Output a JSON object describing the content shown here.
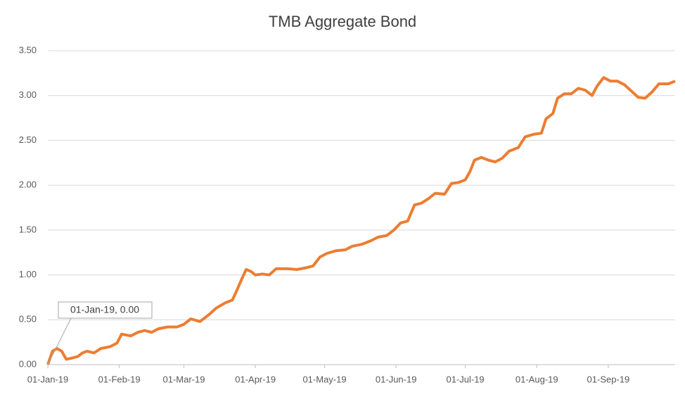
{
  "chart_data": {
    "type": "line",
    "title": "TMB Aggregate Bond",
    "x": [
      "2019-01-01",
      "2019-01-03",
      "2019-01-05",
      "2019-01-07",
      "2019-01-09",
      "2019-01-11",
      "2019-01-14",
      "2019-01-16",
      "2019-01-18",
      "2019-01-21",
      "2019-01-24",
      "2019-01-28",
      "2019-01-31",
      "2019-02-02",
      "2019-02-06",
      "2019-02-09",
      "2019-02-12",
      "2019-02-15",
      "2019-02-18",
      "2019-02-22",
      "2019-02-26",
      "2019-03-01",
      "2019-03-04",
      "2019-03-08",
      "2019-03-12",
      "2019-03-15",
      "2019-03-19",
      "2019-03-22",
      "2019-03-24",
      "2019-03-26",
      "2019-03-28",
      "2019-03-30",
      "2019-04-01",
      "2019-04-04",
      "2019-04-07",
      "2019-04-10",
      "2019-04-15",
      "2019-04-19",
      "2019-04-23",
      "2019-04-26",
      "2019-04-29",
      "2019-05-02",
      "2019-05-06",
      "2019-05-10",
      "2019-05-13",
      "2019-05-17",
      "2019-05-21",
      "2019-05-24",
      "2019-05-28",
      "2019-05-31",
      "2019-06-03",
      "2019-06-06",
      "2019-06-09",
      "2019-06-12",
      "2019-06-15",
      "2019-06-18",
      "2019-06-22",
      "2019-06-25",
      "2019-06-28",
      "2019-07-01",
      "2019-07-03",
      "2019-07-05",
      "2019-07-08",
      "2019-07-11",
      "2019-07-14",
      "2019-07-17",
      "2019-07-20",
      "2019-07-24",
      "2019-07-27",
      "2019-07-31",
      "2019-08-03",
      "2019-08-05",
      "2019-08-08",
      "2019-08-10",
      "2019-08-13",
      "2019-08-16",
      "2019-08-19",
      "2019-08-22",
      "2019-08-25",
      "2019-08-27",
      "2019-08-30",
      "2019-09-02",
      "2019-09-05",
      "2019-09-08",
      "2019-09-11",
      "2019-09-14",
      "2019-09-17",
      "2019-09-20",
      "2019-09-23",
      "2019-09-27",
      "2019-09-30"
    ],
    "values": [
      0.0,
      0.15,
      0.18,
      0.15,
      0.06,
      0.07,
      0.09,
      0.13,
      0.15,
      0.13,
      0.18,
      0.2,
      0.24,
      0.34,
      0.32,
      0.36,
      0.38,
      0.36,
      0.4,
      0.42,
      0.42,
      0.45,
      0.51,
      0.48,
      0.56,
      0.63,
      0.69,
      0.72,
      0.83,
      0.95,
      1.06,
      1.04,
      1.0,
      1.01,
      1.0,
      1.07,
      1.07,
      1.06,
      1.08,
      1.1,
      1.2,
      1.24,
      1.27,
      1.28,
      1.32,
      1.34,
      1.38,
      1.42,
      1.44,
      1.5,
      1.58,
      1.6,
      1.78,
      1.8,
      1.85,
      1.91,
      1.9,
      2.02,
      2.03,
      2.06,
      2.15,
      2.28,
      2.31,
      2.28,
      2.26,
      2.3,
      2.38,
      2.42,
      2.54,
      2.57,
      2.58,
      2.74,
      2.8,
      2.97,
      3.02,
      3.02,
      3.08,
      3.06,
      3.0,
      3.1,
      3.2,
      3.16,
      3.16,
      3.12,
      3.05,
      2.98,
      2.97,
      3.04,
      3.13,
      3.13,
      3.16
    ],
    "color": "#ed7d31",
    "xlim": [
      "2019-01-01",
      "2019-09-30"
    ],
    "xticks": [
      {
        "value": "2019-01-01",
        "label": "01-Jan-19"
      },
      {
        "value": "2019-02-01",
        "label": "01-Feb-19"
      },
      {
        "value": "2019-03-01",
        "label": "01-Mar-19"
      },
      {
        "value": "2019-04-01",
        "label": "01-Apr-19"
      },
      {
        "value": "2019-05-01",
        "label": "01-May-19"
      },
      {
        "value": "2019-06-01",
        "label": "01-Jun-19"
      },
      {
        "value": "2019-07-01",
        "label": "01-Jul-19"
      },
      {
        "value": "2019-08-01",
        "label": "01-Aug-19"
      },
      {
        "value": "2019-09-01",
        "label": "01-Sep-19"
      }
    ],
    "ylim": [
      0,
      3.5
    ],
    "yticks": [
      {
        "value": 0,
        "label": "0.00"
      },
      {
        "value": 0.5,
        "label": "0.50"
      },
      {
        "value": 1,
        "label": "1.00"
      },
      {
        "value": 1.5,
        "label": "1.50"
      },
      {
        "value": 2,
        "label": "2.00"
      },
      {
        "value": 2.5,
        "label": "2.50"
      },
      {
        "value": 3,
        "label": "3.00"
      },
      {
        "value": 3.5,
        "label": "3.50"
      }
    ],
    "grid": true,
    "annotations": [
      {
        "text": "01-Jan-19, 0.00"
      }
    ]
  }
}
